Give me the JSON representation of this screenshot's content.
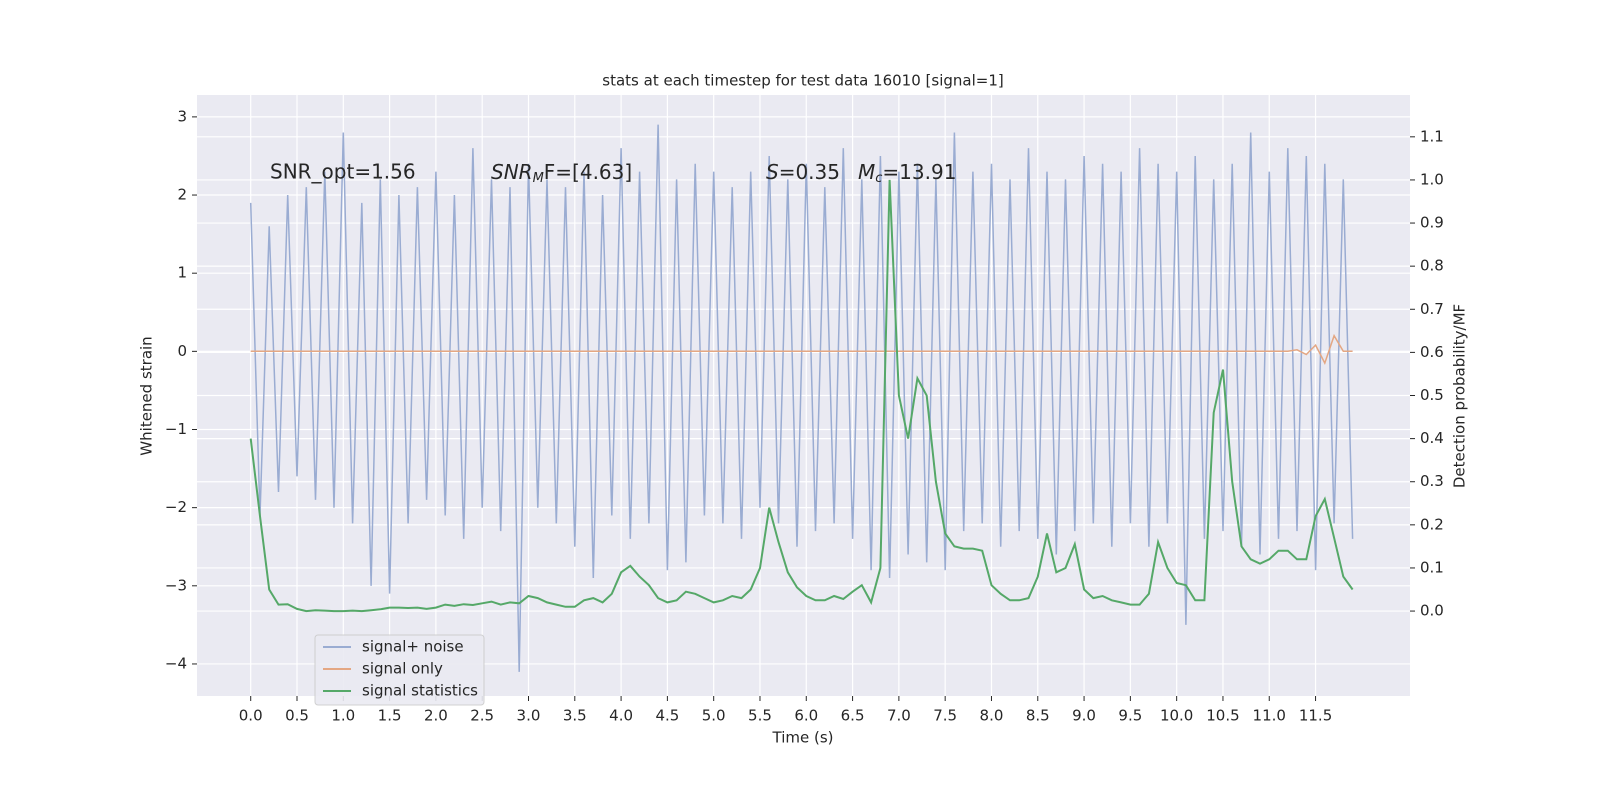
{
  "chart_data": {
    "type": "line",
    "title": "stats at each timestep for test data 16010 [signal=1]",
    "x_label": "Time (s)",
    "y_label": "Whitened strain",
    "y2_label": "Detection probability/MF",
    "annotations": [
      {
        "text": "SNR_opt=1.56"
      },
      {
        "main": "SNR",
        "sub": "M",
        "rest": "F=[4.63]"
      },
      {
        "main": "S",
        "rest": "=0.35"
      },
      {
        "main": "M",
        "sub": "c",
        "rest": "=13.91"
      }
    ],
    "x": [
      0,
      0.1,
      0.2,
      0.3,
      0.4,
      0.5,
      0.6,
      0.7,
      0.8,
      0.9,
      1,
      1.1,
      1.2,
      1.3,
      1.4,
      1.5,
      1.6,
      1.7,
      1.8,
      1.9,
      2,
      2.1,
      2.2,
      2.3,
      2.4,
      2.5,
      2.6,
      2.7,
      2.8,
      2.9,
      3,
      3.1,
      3.2,
      3.3,
      3.4,
      3.5,
      3.6,
      3.7,
      3.8,
      3.9,
      4,
      4.1,
      4.2,
      4.3,
      4.4,
      4.5,
      4.6,
      4.7,
      4.8,
      4.9,
      5,
      5.1,
      5.2,
      5.3,
      5.4,
      5.5,
      5.6,
      5.7,
      5.8,
      5.9,
      6,
      6.1,
      6.2,
      6.3,
      6.4,
      6.5,
      6.6,
      6.7,
      6.8,
      6.9,
      7,
      7.1,
      7.2,
      7.3,
      7.4,
      7.5,
      7.6,
      7.7,
      7.8,
      7.9,
      8,
      8.1,
      8.2,
      8.3,
      8.4,
      8.5,
      8.6,
      8.7,
      8.8,
      8.9,
      9,
      9.1,
      9.2,
      9.3,
      9.4,
      9.5,
      9.6,
      9.7,
      9.8,
      9.9,
      10,
      10.1,
      10.2,
      10.3,
      10.4,
      10.5,
      10.6,
      10.7,
      10.8,
      10.9,
      11,
      11.1,
      11.2,
      11.3,
      11.4,
      11.5,
      11.6,
      11.7,
      11.8,
      11.9
    ],
    "series": [
      {
        "name": "signal+ noise",
        "color": "#9aacd2",
        "values": [
          1.9,
          -2.1,
          1.6,
          -1.8,
          2.0,
          -1.6,
          2.1,
          -1.9,
          2.3,
          -2.0,
          2.8,
          -2.2,
          1.9,
          -3.0,
          2.2,
          -3.1,
          2.0,
          -2.2,
          2.1,
          -1.9,
          2.3,
          -2.1,
          2.0,
          -2.4,
          2.6,
          -2.0,
          2.2,
          -2.3,
          2.1,
          -4.1,
          2.4,
          -2.0,
          2.2,
          -2.2,
          2.1,
          -2.5,
          2.3,
          -2.9,
          2.0,
          -2.1,
          2.6,
          -2.4,
          2.3,
          -2.2,
          2.9,
          -2.8,
          2.2,
          -2.7,
          2.4,
          -2.1,
          2.3,
          -2.2,
          2.1,
          -2.4,
          2.3,
          -2.0,
          2.5,
          -2.2,
          2.2,
          -2.5,
          2.4,
          -2.3,
          2.1,
          -2.2,
          2.6,
          -2.4,
          2.2,
          -2.8,
          2.5,
          -2.9,
          2.3,
          -2.6,
          2.4,
          -2.7,
          2.2,
          -2.8,
          2.8,
          -2.3,
          2.3,
          -2.2,
          2.4,
          -2.5,
          2.2,
          -2.3,
          2.6,
          -2.4,
          2.3,
          -2.6,
          2.2,
          -2.3,
          2.5,
          -2.2,
          2.4,
          -2.5,
          2.3,
          -2.2,
          2.6,
          -2.5,
          2.4,
          -2.2,
          2.3,
          -3.5,
          2.5,
          -2.4,
          2.2,
          -2.3,
          2.4,
          -2.5,
          2.8,
          -2.6,
          2.3,
          -2.4,
          2.6,
          -2.3,
          2.5,
          -2.8,
          2.4,
          -2.2,
          2.2,
          -2.4
        ]
      },
      {
        "name": "signal only",
        "color": "#e4a783",
        "values": [
          0,
          0,
          0,
          0,
          0,
          0,
          0,
          0,
          0,
          0,
          0,
          0,
          0,
          0,
          0,
          0,
          0,
          0,
          0,
          0,
          0,
          0,
          0,
          0,
          0,
          0,
          0,
          0,
          0,
          0,
          0,
          0,
          0,
          0,
          0,
          0,
          0,
          0,
          0,
          0,
          0,
          0,
          0,
          0,
          0,
          0,
          0,
          0,
          0,
          0,
          0,
          0,
          0,
          0,
          0,
          0,
          0,
          0,
          0,
          0,
          0,
          0,
          0,
          0,
          0,
          0,
          0,
          0,
          0,
          0,
          0,
          0,
          0,
          0,
          0,
          0,
          0,
          0,
          0,
          0,
          0,
          0,
          0,
          0,
          0,
          0,
          0,
          0,
          0,
          0,
          0,
          0,
          0,
          0,
          0,
          0,
          0,
          0,
          0,
          0,
          0,
          0,
          0,
          0,
          0,
          0,
          0,
          0,
          0,
          0,
          0,
          0,
          0,
          0.02,
          -0.04,
          0.08,
          -0.15,
          0.2,
          0,
          0
        ]
      },
      {
        "name": "signal statistics",
        "color": "#55a868",
        "axis": "y2",
        "values": [
          0.4,
          0.22,
          0.05,
          0.015,
          0.016,
          0.005,
          0.0,
          0.002,
          0.001,
          0.0,
          0.0,
          0.001,
          0.0,
          0.002,
          0.004,
          0.008,
          0.008,
          0.007,
          0.008,
          0.005,
          0.008,
          0.015,
          0.012,
          0.016,
          0.014,
          0.018,
          0.022,
          0.015,
          0.02,
          0.018,
          0.035,
          0.03,
          0.02,
          0.015,
          0.01,
          0.01,
          0.025,
          0.03,
          0.02,
          0.04,
          0.09,
          0.105,
          0.08,
          0.06,
          0.03,
          0.02,
          0.025,
          0.045,
          0.04,
          0.03,
          0.02,
          0.025,
          0.035,
          0.03,
          0.05,
          0.1,
          0.24,
          0.16,
          0.09,
          0.055,
          0.035,
          0.025,
          0.025,
          0.035,
          0.028,
          0.045,
          0.06,
          0.02,
          0.1,
          1.0,
          0.5,
          0.4,
          0.54,
          0.5,
          0.3,
          0.18,
          0.15,
          0.145,
          0.145,
          0.14,
          0.06,
          0.04,
          0.025,
          0.025,
          0.03,
          0.08,
          0.18,
          0.09,
          0.1,
          0.155,
          0.05,
          0.03,
          0.035,
          0.025,
          0.02,
          0.015,
          0.015,
          0.04,
          0.16,
          0.1,
          0.065,
          0.06,
          0.025,
          0.025,
          0.46,
          0.56,
          0.3,
          0.15,
          0.12,
          0.11,
          0.12,
          0.14,
          0.14,
          0.12,
          0.12,
          0.22,
          0.26,
          0.17,
          0.08,
          0.05
        ]
      }
    ],
    "xlim": [
      -0.58,
      12.52
    ],
    "ylim": [
      -4.41,
      3.28
    ],
    "y2lim": [
      -0.197,
      1.197
    ],
    "xticks": [
      {
        "value": 0,
        "label": "0.0"
      },
      0.5,
      {
        "value": 1,
        "label": "1.0"
      },
      1.5,
      {
        "value": 2,
        "label": "2.0"
      },
      2.5,
      {
        "value": 3,
        "label": "3.0"
      },
      3.5,
      {
        "value": 4,
        "label": "4.0"
      },
      4.5,
      {
        "value": 5,
        "label": "5.0"
      },
      5.5,
      {
        "value": 6,
        "label": "6.0"
      },
      6.5,
      {
        "value": 7,
        "label": "7.0"
      },
      7.5,
      {
        "value": 8,
        "label": "8.0"
      },
      8.5,
      {
        "value": 9,
        "label": "9.0"
      },
      9.5,
      {
        "value": 10,
        "label": "10.0"
      },
      10.5,
      {
        "value": 11,
        "label": "11.0"
      },
      11.5
    ],
    "yticks": [
      {
        "value": -4,
        "label": "−4"
      },
      {
        "value": -3,
        "label": "−3"
      },
      {
        "value": -2,
        "label": "−2"
      },
      {
        "value": -1,
        "label": "−1"
      },
      0,
      1,
      2,
      3
    ],
    "y2ticks": [
      {
        "value": 0,
        "label": "0.0"
      },
      0.1,
      0.2,
      0.3,
      0.4,
      0.5,
      0.6,
      0.7,
      0.8,
      0.9,
      {
        "value": 1,
        "label": "1.0"
      },
      1.1
    ],
    "grid": true,
    "legend": "lower left",
    "background": "#eaeaf2"
  }
}
